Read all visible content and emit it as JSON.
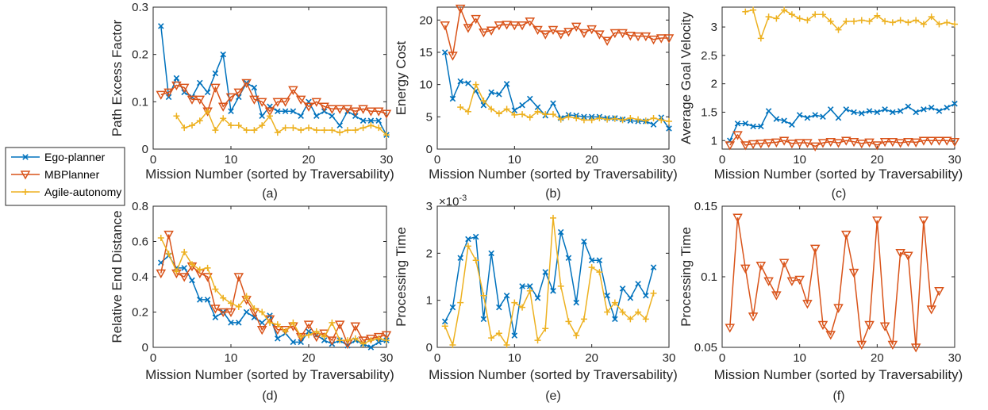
{
  "chart_data": [
    {
      "type": "line",
      "caption": "(a)",
      "xlabel": "Mission Number (sorted by Traversability)",
      "ylabel": "Path Excess Factor",
      "xlim": [
        0,
        30
      ],
      "ylim": [
        0,
        0.3
      ],
      "xticks": [
        0,
        10,
        20,
        30
      ],
      "yticks": [
        0,
        0.1,
        0.2,
        0.3
      ],
      "yticklabels": [
        "0",
        "0.1",
        "0.2",
        "0.3"
      ],
      "series": [
        {
          "name": "Ego-planner",
          "x": [
            1,
            2,
            3,
            4,
            5,
            6,
            7,
            8,
            9,
            10,
            11,
            12,
            13,
            14,
            15,
            16,
            17,
            18,
            19,
            20,
            21,
            22,
            23,
            24,
            25,
            26,
            27,
            28,
            29,
            30
          ],
          "values": [
            0.26,
            0.11,
            0.15,
            0.12,
            0.11,
            0.14,
            0.12,
            0.16,
            0.2,
            0.08,
            0.11,
            0.14,
            0.13,
            0.07,
            0.09,
            0.08,
            0.08,
            0.08,
            0.07,
            0.1,
            0.07,
            0.08,
            0.07,
            0.05,
            0.08,
            0.07,
            0.06,
            0.06,
            0.06,
            0.03
          ]
        },
        {
          "name": "MBPlanner",
          "x": [
            1,
            2,
            3,
            4,
            5,
            6,
            7,
            8,
            9,
            10,
            11,
            12,
            13,
            14,
            15,
            16,
            17,
            18,
            19,
            20,
            21,
            22,
            23,
            24,
            25,
            26,
            27,
            28,
            29,
            30
          ],
          "values": [
            0.115,
            0.12,
            0.135,
            0.13,
            0.105,
            0.105,
            0.08,
            0.13,
            0.09,
            0.11,
            0.12,
            0.14,
            0.105,
            0.1,
            0.08,
            0.1,
            0.1,
            0.125,
            0.105,
            0.09,
            0.1,
            0.09,
            0.085,
            0.085,
            0.085,
            0.08,
            0.085,
            0.08,
            0.08,
            0.075
          ]
        },
        {
          "name": "Agile-autonomy",
          "x": [
            3,
            4,
            5,
            6,
            7,
            8,
            9,
            10,
            11,
            12,
            13,
            14,
            15,
            16,
            17,
            18,
            19,
            20,
            21,
            22,
            23,
            24,
            25,
            26,
            27,
            28,
            29,
            30
          ],
          "values": [
            0.07,
            0.045,
            0.05,
            0.06,
            0.08,
            0.04,
            0.065,
            0.05,
            0.05,
            0.04,
            0.04,
            0.05,
            0.07,
            0.035,
            0.045,
            0.045,
            0.04,
            0.045,
            0.04,
            0.04,
            0.04,
            0.035,
            0.04,
            0.04,
            0.045,
            0.05,
            0.045,
            0.03
          ]
        }
      ]
    },
    {
      "type": "line",
      "caption": "(b)",
      "xlabel": "",
      "ylabel": "Energy Cost",
      "xlim": [
        0,
        30
      ],
      "ylim": [
        0,
        22
      ],
      "xticks": [
        0,
        10,
        20,
        30
      ],
      "yticks": [
        0,
        5,
        10,
        15,
        20
      ],
      "yticklabels": [
        "0",
        "5",
        "10",
        "15",
        "20"
      ],
      "series": [
        {
          "name": "Ego-planner",
          "x": [
            1,
            2,
            3,
            4,
            5,
            6,
            7,
            8,
            9,
            10,
            11,
            12,
            13,
            14,
            15,
            16,
            17,
            18,
            19,
            20,
            21,
            22,
            23,
            24,
            25,
            26,
            27,
            28,
            29,
            30
          ],
          "values": [
            15,
            7.8,
            10.5,
            10.2,
            9,
            6.8,
            8.8,
            8.5,
            10.1,
            6,
            6.8,
            7.8,
            6.5,
            5.2,
            7.1,
            4.8,
            5.3,
            5.2,
            5,
            5,
            5,
            4.8,
            4.8,
            4.6,
            4.4,
            4.3,
            4.3,
            3.8,
            4.9,
            3.2
          ]
        },
        {
          "name": "MBPlanner",
          "x": [
            1,
            2,
            3,
            4,
            5,
            6,
            7,
            8,
            9,
            10,
            11,
            12,
            13,
            14,
            15,
            16,
            17,
            18,
            19,
            20,
            21,
            22,
            23,
            24,
            25,
            26,
            27,
            28,
            29,
            30
          ],
          "values": [
            19.2,
            14.5,
            21.8,
            18.8,
            20.2,
            18.1,
            18.4,
            19.2,
            19.3,
            19.2,
            19.2,
            19.8,
            18.5,
            17.8,
            18.5,
            17.8,
            18.2,
            19,
            18,
            18.6,
            17.8,
            16.8,
            18,
            18,
            17.6,
            17.5,
            17.5,
            17,
            17.2,
            17.2
          ]
        },
        {
          "name": "Agile-autonomy",
          "x": [
            3,
            4,
            5,
            6,
            7,
            8,
            9,
            10,
            11,
            12,
            13,
            14,
            15,
            16,
            17,
            18,
            19,
            20,
            21,
            22,
            23,
            24,
            25,
            26,
            27,
            28,
            29,
            30
          ],
          "values": [
            6.5,
            5.8,
            10,
            7.5,
            6.2,
            5.5,
            6.2,
            5.3,
            5.4,
            4.9,
            5.8,
            5.4,
            5.4,
            4.6,
            5,
            4.8,
            4.5,
            4.5,
            4.8,
            4.6,
            4.7,
            4.5,
            4.8,
            4.6,
            4.4,
            4.8,
            4.5,
            4.3
          ]
        }
      ]
    },
    {
      "type": "line",
      "caption": "(c)",
      "xlabel": "",
      "ylabel": "Average Goal Velocity",
      "xlim": [
        0,
        30
      ],
      "ylim": [
        0.85,
        3.35
      ],
      "xticks": [
        0,
        10,
        20,
        30
      ],
      "yticks": [
        1,
        1.5,
        2,
        2.5,
        3
      ],
      "yticklabels": [
        "1",
        "1.5",
        "2",
        "2.5",
        "3"
      ],
      "series": [
        {
          "name": "Ego-planner",
          "x": [
            1,
            2,
            3,
            4,
            5,
            6,
            7,
            8,
            9,
            10,
            11,
            12,
            13,
            14,
            15,
            16,
            17,
            18,
            19,
            20,
            21,
            22,
            23,
            24,
            25,
            26,
            27,
            28,
            29,
            30
          ],
          "values": [
            1,
            1.3,
            1.3,
            1.25,
            1.25,
            1.52,
            1.38,
            1.35,
            1.28,
            1.45,
            1.4,
            1.45,
            1.42,
            1.55,
            1.4,
            1.55,
            1.5,
            1.48,
            1.52,
            1.5,
            1.55,
            1.5,
            1.52,
            1.6,
            1.5,
            1.55,
            1.58,
            1.52,
            1.58,
            1.65
          ]
        },
        {
          "name": "MBPlanner",
          "x": [
            1,
            2,
            3,
            4,
            5,
            6,
            7,
            8,
            9,
            10,
            11,
            12,
            13,
            14,
            15,
            16,
            17,
            18,
            19,
            20,
            21,
            22,
            23,
            24,
            25,
            26,
            27,
            28,
            29,
            30
          ],
          "values": [
            0.92,
            1.1,
            0.92,
            0.94,
            0.95,
            0.96,
            0.97,
            1,
            0.95,
            0.96,
            0.96,
            0.9,
            0.96,
            0.98,
            0.96,
            1,
            0.98,
            0.95,
            0.97,
            0.92,
            0.98,
            0.98,
            0.96,
            0.98,
            0.97,
            1,
            1,
            1,
            1,
            0.98
          ]
        },
        {
          "name": "Agile-autonomy",
          "x": [
            3,
            4,
            5,
            6,
            7,
            8,
            9,
            10,
            11,
            12,
            13,
            14,
            15,
            16,
            17,
            18,
            19,
            20,
            21,
            22,
            23,
            24,
            25,
            26,
            27,
            28,
            29,
            30
          ],
          "values": [
            3.27,
            3.3,
            2.8,
            3.18,
            3.15,
            3.3,
            3.22,
            3.15,
            3.12,
            3.22,
            3.22,
            3.1,
            2.95,
            3.1,
            3.1,
            3.12,
            3.1,
            3.2,
            3.1,
            3.08,
            3.12,
            3.08,
            3.12,
            3.05,
            3.18,
            3.05,
            3.08,
            3.05
          ]
        }
      ]
    },
    {
      "type": "line",
      "caption": "(d)",
      "xlabel": "Mission Number (sorted by Traversability)",
      "ylabel": "Relative End Distance",
      "xlim": [
        0,
        30
      ],
      "ylim": [
        0,
        0.8
      ],
      "xticks": [
        0,
        10,
        20,
        30
      ],
      "yticks": [
        0,
        0.2,
        0.4,
        0.6,
        0.8
      ],
      "yticklabels": [
        "0",
        "0.2",
        "0.4",
        "0.6",
        "0.8"
      ],
      "series": [
        {
          "name": "Ego-planner",
          "x": [
            1,
            2,
            3,
            4,
            5,
            6,
            7,
            8,
            9,
            10,
            11,
            12,
            13,
            14,
            15,
            16,
            17,
            18,
            19,
            20,
            21,
            22,
            23,
            24,
            25,
            26,
            27,
            28,
            29,
            30
          ],
          "values": [
            0.48,
            0.52,
            0.45,
            0.45,
            0.38,
            0.27,
            0.27,
            0.17,
            0.2,
            0.14,
            0.14,
            0.2,
            0.17,
            0.14,
            0.18,
            0.05,
            0.08,
            0.03,
            0.03,
            0.09,
            0.07,
            0.04,
            0.02,
            0.04,
            0.01,
            0.04,
            0.02,
            0.0,
            0.03,
            0.04
          ]
        },
        {
          "name": "MBPlanner",
          "x": [
            1,
            2,
            3,
            4,
            5,
            6,
            7,
            8,
            9,
            10,
            11,
            12,
            13,
            14,
            15,
            16,
            17,
            18,
            19,
            20,
            21,
            22,
            23,
            24,
            25,
            26,
            27,
            28,
            29,
            30
          ],
          "values": [
            0.42,
            0.64,
            0.42,
            0.4,
            0.46,
            0.42,
            0.4,
            0.22,
            0.2,
            0.2,
            0.4,
            0.27,
            0.2,
            0.1,
            0.16,
            0.1,
            0.1,
            0.12,
            0.06,
            0.13,
            0.06,
            0.08,
            0.04,
            0.13,
            0.02,
            0.12,
            0.04,
            0.05,
            0.06,
            0.07
          ]
        },
        {
          "name": "Agile-autonomy",
          "x": [
            1,
            2,
            3,
            4,
            5,
            6,
            7,
            8,
            9,
            10,
            11,
            12,
            13,
            14,
            15,
            16,
            17,
            18,
            19,
            20,
            21,
            22,
            23,
            24,
            25,
            26,
            27,
            28,
            29,
            30
          ],
          "values": [
            0.62,
            0.53,
            0.43,
            0.54,
            0.47,
            0.44,
            0.45,
            0.33,
            0.28,
            0.25,
            0.23,
            0.29,
            0.22,
            0.2,
            0.14,
            0.13,
            0.09,
            0.14,
            0.06,
            0.07,
            0.09,
            0.06,
            0.14,
            0.04,
            0.04,
            0.05,
            0.02,
            0.04,
            0.05,
            0.04
          ]
        }
      ]
    },
    {
      "type": "line",
      "caption": "(e)",
      "xlabel": "",
      "ylabel": "Processing Time",
      "exponent_label": "×10-3",
      "xlim": [
        0,
        30
      ],
      "ylim": [
        0,
        3
      ],
      "xticks": [
        0,
        10,
        20,
        30
      ],
      "yticks": [
        0,
        1,
        2,
        3
      ],
      "yticklabels": [
        "0",
        "1",
        "2",
        "3"
      ],
      "series": [
        {
          "name": "Ego-planner",
          "x": [
            1,
            2,
            3,
            4,
            5,
            6,
            7,
            8,
            9,
            10,
            11,
            12,
            13,
            14,
            15,
            16,
            17,
            18,
            19,
            20,
            21,
            22,
            23,
            24,
            25,
            26,
            27,
            28
          ],
          "values": [
            0.55,
            0.85,
            1.9,
            2.3,
            2.35,
            0.6,
            2.0,
            0.85,
            1.1,
            0.25,
            1.3,
            1.3,
            1.05,
            1.6,
            1.2,
            2.45,
            1.9,
            0.95,
            2.25,
            1.85,
            1.85,
            1.1,
            0.6,
            1.25,
            1.05,
            1.35,
            1.1,
            1.7
          ]
        },
        {
          "name": "Agile-autonomy",
          "x": [
            1,
            2,
            3,
            4,
            5,
            6,
            7,
            8,
            9,
            10,
            11,
            12,
            13,
            14,
            15,
            16,
            17,
            18,
            19,
            20,
            21,
            22,
            23,
            24,
            25,
            26,
            27,
            28
          ],
          "values": [
            0.45,
            0.05,
            0.95,
            2.15,
            1.85,
            1.1,
            0.2,
            0.3,
            0.05,
            0.95,
            0.85,
            1.2,
            0.15,
            0.4,
            2.75,
            1.3,
            0.55,
            0.25,
            0.6,
            1.7,
            1.6,
            0.75,
            0.95,
            0.75,
            0.6,
            0.75,
            0.6,
            1.15
          ]
        }
      ]
    },
    {
      "type": "line",
      "caption": "(f)",
      "xlabel": "Mission Number (sorted by Traversability)",
      "ylabel": "Processing Time",
      "xlim": [
        0,
        30
      ],
      "ylim": [
        0.05,
        0.15
      ],
      "xticks": [
        0,
        10,
        20,
        30
      ],
      "yticks": [
        0.05,
        0.1,
        0.15
      ],
      "yticklabels": [
        "0.05",
        "0.1",
        "0.15"
      ],
      "series": [
        {
          "name": "MBPlanner",
          "x": [
            1,
            2,
            3,
            4,
            5,
            6,
            7,
            8,
            9,
            10,
            11,
            12,
            13,
            14,
            15,
            16,
            17,
            18,
            19,
            20,
            21,
            22,
            23,
            24,
            25,
            26,
            27,
            28
          ],
          "values": [
            0.064,
            0.142,
            0.106,
            0.072,
            0.108,
            0.097,
            0.087,
            0.11,
            0.097,
            0.098,
            0.081,
            0.12,
            0.066,
            0.059,
            0.078,
            0.13,
            0.103,
            0.052,
            0.066,
            0.14,
            0.065,
            0.052,
            0.117,
            0.115,
            0.05,
            0.14,
            0.077,
            0.09
          ]
        }
      ]
    }
  ],
  "legend": {
    "items": [
      {
        "name": "Ego-planner",
        "color": "#0072BD",
        "marker": "x"
      },
      {
        "name": "MBPlanner",
        "color": "#D95319",
        "marker": "triangle-down"
      },
      {
        "name": "Agile-autonomy",
        "color": "#EDB120",
        "marker": "plus"
      }
    ]
  },
  "colors": {
    "Ego-planner": "#0072BD",
    "MBPlanner": "#D95319",
    "Agile-autonomy": "#EDB120"
  }
}
